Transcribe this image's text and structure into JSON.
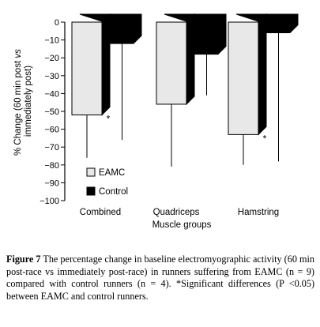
{
  "chart_data": {
    "type": "bar",
    "categories": [
      "Combined",
      "Quadriceps",
      "Hamstring"
    ],
    "series": [
      {
        "name": "EAMC",
        "values": [
          -52,
          -46,
          -63
        ],
        "error": [
          24,
          35,
          17
        ],
        "color": "#e8e8e8"
      },
      {
        "name": "Control",
        "values": [
          -12,
          -18,
          -6
        ],
        "error": [
          54,
          23,
          72
        ],
        "color": "#000000"
      }
    ],
    "significance": [
      "*",
      "",
      "*"
    ],
    "ylabel": "% Change (60 min post vs immediately post)",
    "xlabel": "Muscle groups",
    "ylim": [
      -100,
      0
    ],
    "yticks": [
      0,
      -10,
      -20,
      -30,
      -40,
      -50,
      -60,
      -70,
      -80,
      -90,
      -100
    ],
    "legend_position": "bottom-left",
    "style": "3d-bars"
  },
  "caption": {
    "label": "Figure 7",
    "text": " The percentage change in baseline electromyographic activity (60 min post-race vs immediately post-race) in runners suffering from EAMC (n = 9) compared with control runners (n = 4). *Significant differences (P <0.05) between EAMC and control runners."
  }
}
